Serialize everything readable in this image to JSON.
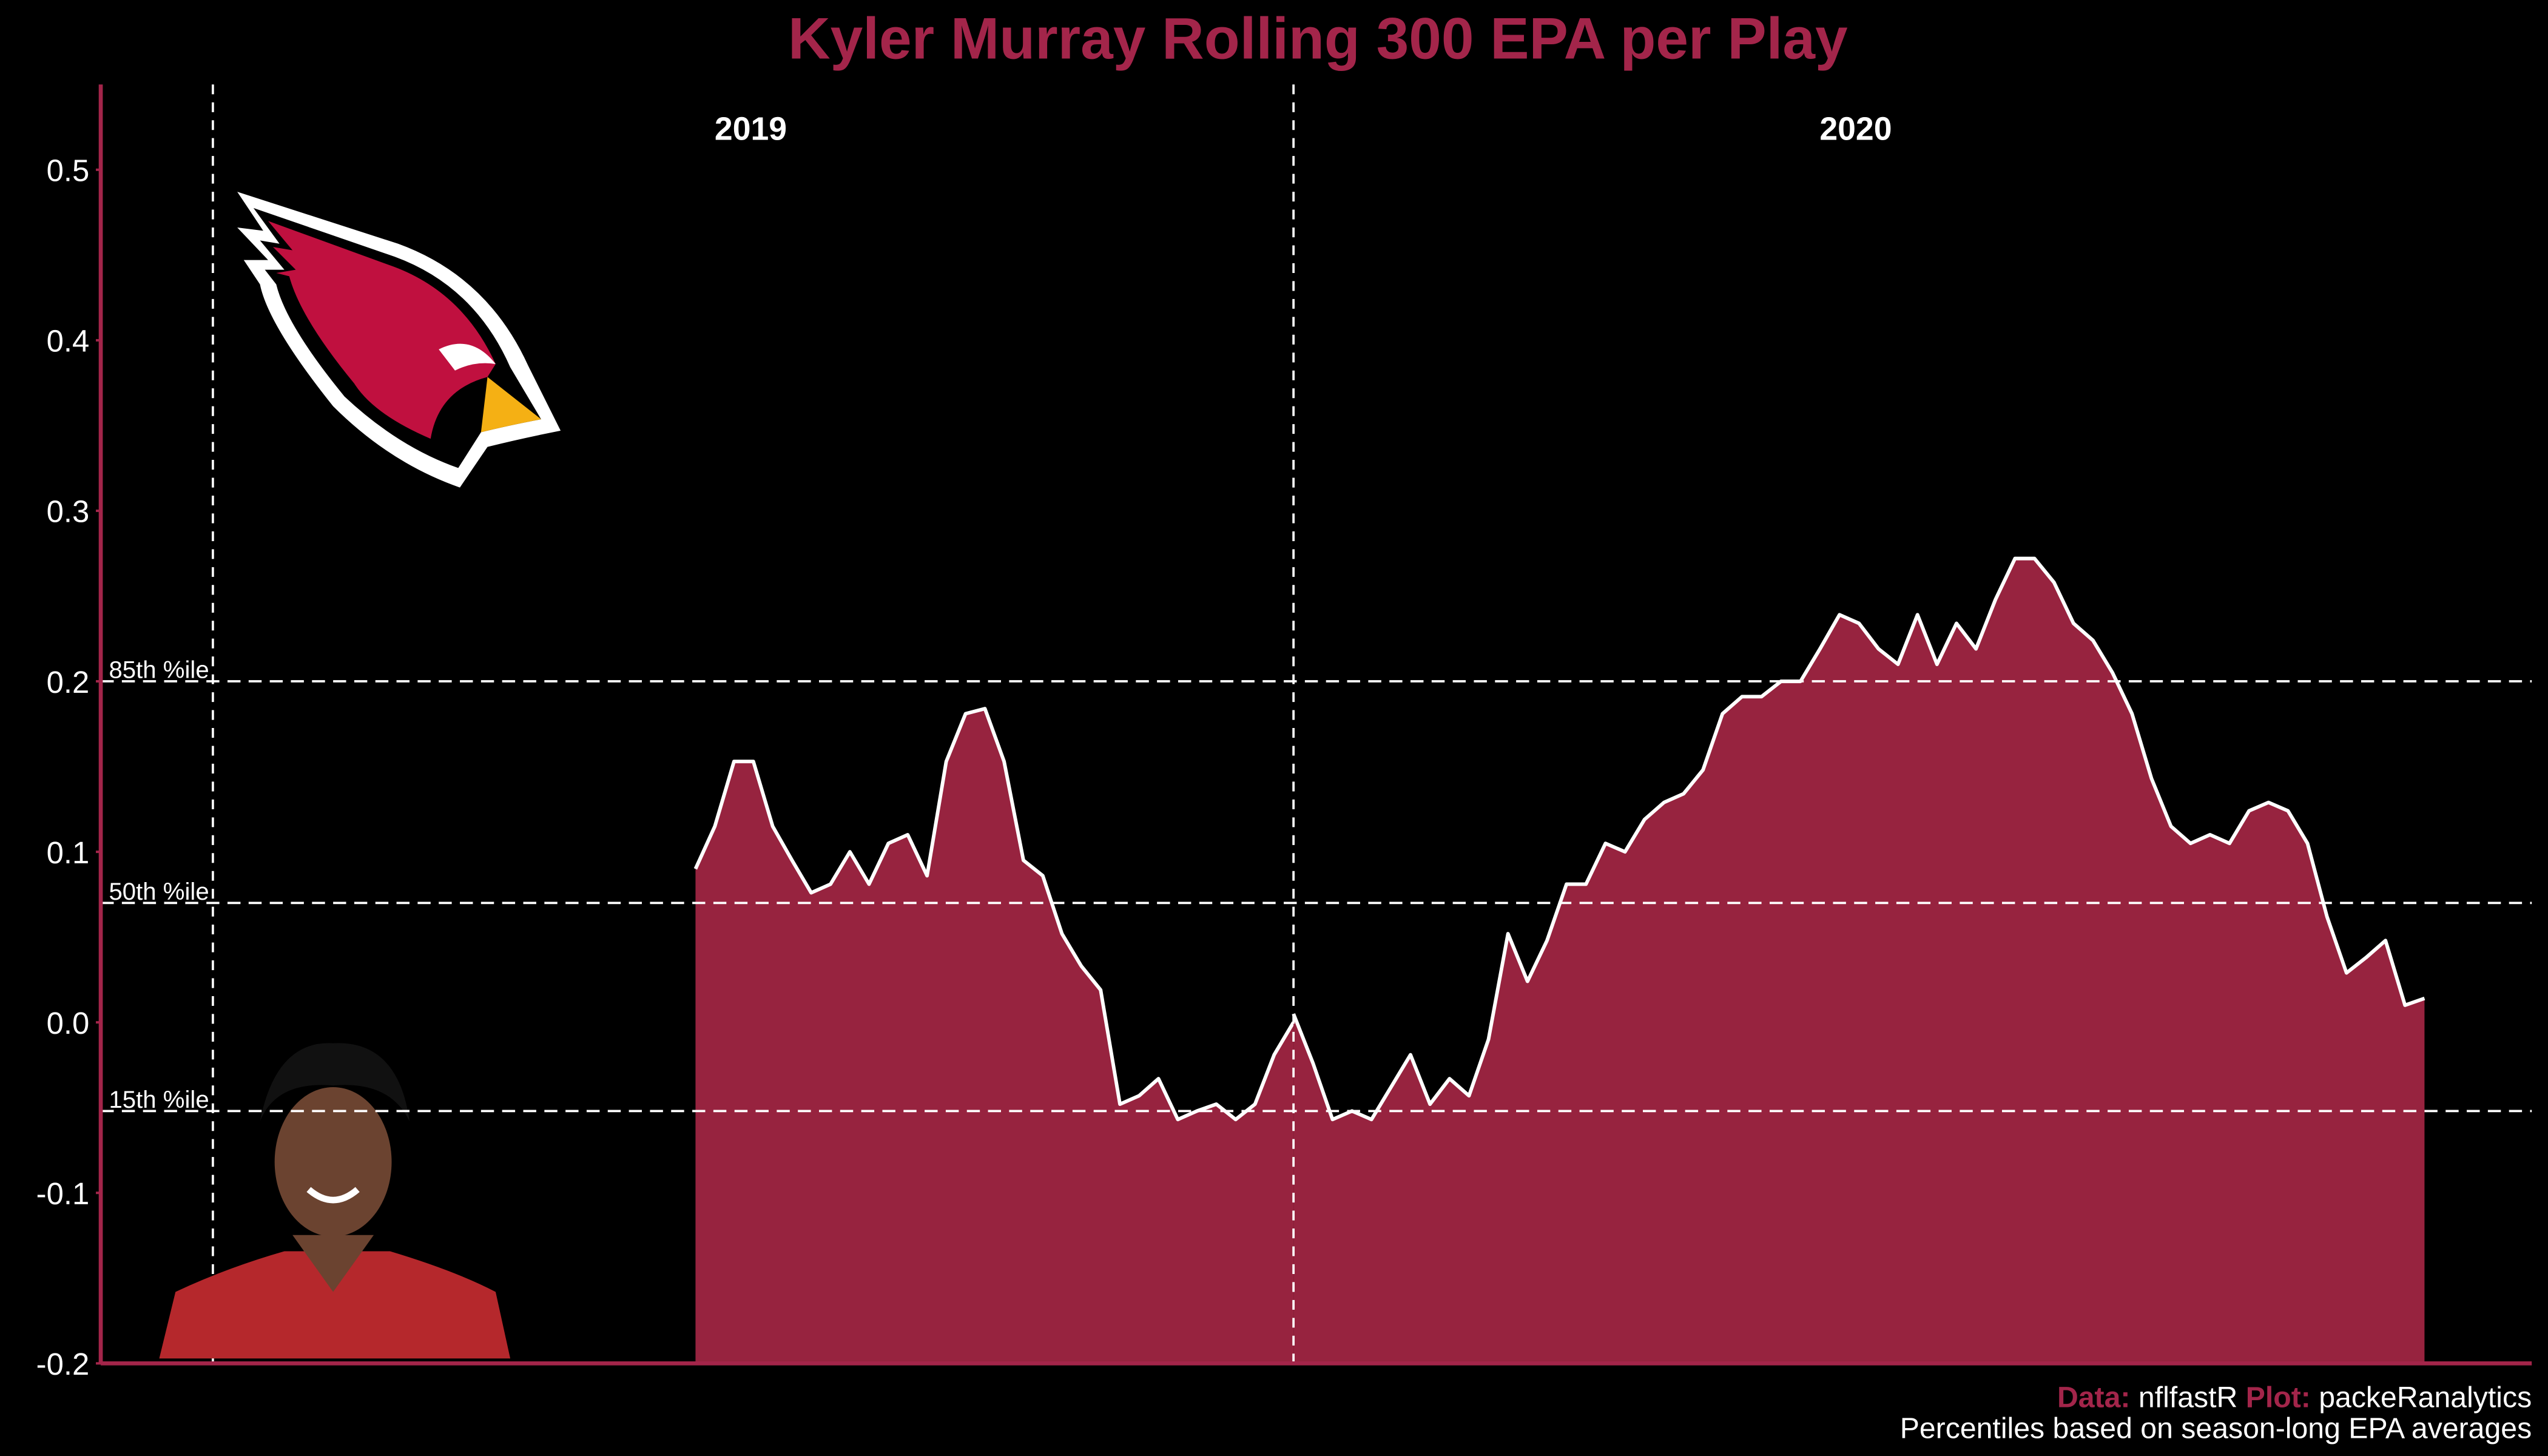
{
  "chart_data": {
    "type": "area",
    "title": "Kyler Murray Rolling 300 EPA per Play",
    "series": [
      {
        "name": "2019",
        "color": "#97233f",
        "line_color": "#ffffff",
        "values": [
          0.09,
          0.115,
          0.153,
          0.153,
          0.115,
          0.095,
          0.076,
          0.081,
          0.1,
          0.081,
          0.105,
          0.11,
          0.086,
          0.153,
          0.181,
          0.184,
          0.153,
          0.095,
          0.086,
          0.052,
          0.033,
          0.019,
          -0.048,
          -0.043,
          -0.033,
          -0.057,
          -0.052,
          -0.048,
          -0.057,
          -0.048,
          -0.019,
          0.0
        ]
      },
      {
        "name": "2020",
        "color": "#97233f",
        "line_color": "#ffffff",
        "values": [
          0.005,
          -0.024,
          -0.057,
          -0.052,
          -0.057,
          -0.038,
          -0.019,
          -0.048,
          -0.033,
          -0.043,
          -0.01,
          0.052,
          0.024,
          0.048,
          0.081,
          0.081,
          0.105,
          0.1,
          0.119,
          0.129,
          0.134,
          0.148,
          0.181,
          0.191,
          0.191,
          0.2,
          0.2,
          0.219,
          0.239,
          0.234,
          0.219,
          0.21,
          0.239,
          0.21,
          0.234,
          0.219,
          0.248,
          0.272,
          0.272,
          0.258,
          0.234,
          0.224,
          0.205,
          0.181,
          0.143,
          0.115,
          0.105,
          0.11,
          0.105,
          0.124,
          0.129,
          0.124,
          0.105,
          0.062,
          0.029,
          0.038,
          0.048,
          0.01,
          0.014
        ]
      }
    ],
    "reference_lines": [
      {
        "label": "85th %ile",
        "value": 0.2
      },
      {
        "label": "50th %ile",
        "value": 0.07
      },
      {
        "label": "15th %ile",
        "value": -0.052
      }
    ],
    "ylim": [
      -0.2,
      0.55
    ],
    "yticks": [
      -0.2,
      -0.1,
      {
        "value": 0,
        "label": "0.0"
      },
      0.1,
      0.2,
      0.3,
      0.4,
      0.5
    ],
    "caption": {
      "data_label": "Data:",
      "data_source": "nflfastR",
      "plot_label": "Plot:",
      "plot_source": "packeRanalytics",
      "note": "Percentiles based on season-long EPA averages"
    }
  }
}
